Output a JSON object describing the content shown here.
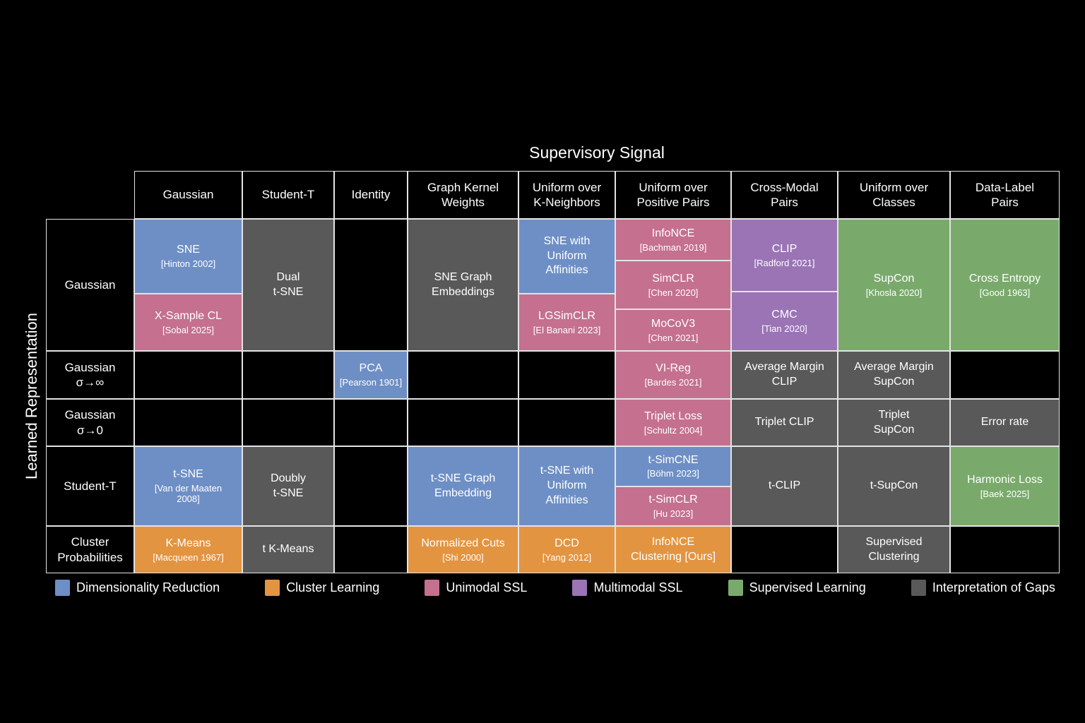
{
  "title": "Supervisory Signal",
  "y_axis_label": "Learned Representation",
  "columns": [
    {
      "key": "gaussian",
      "label": "Gaussian"
    },
    {
      "key": "student-t",
      "label": "Student-T"
    },
    {
      "key": "identity",
      "label": "Identity"
    },
    {
      "key": "graph-kernel-weights",
      "label": "Graph Kernel\nWeights"
    },
    {
      "key": "uniform-k-neighbors",
      "label": "Uniform over\nK-Neighbors"
    },
    {
      "key": "uniform-positive-pairs",
      "label": "Uniform over\nPositive Pairs"
    },
    {
      "key": "cross-modal-pairs",
      "label": "Cross-Modal\nPairs"
    },
    {
      "key": "uniform-classes",
      "label": "Uniform over\nClasses"
    },
    {
      "key": "data-label-pairs",
      "label": "Data-Label\nPairs"
    }
  ],
  "rows": [
    {
      "key": "gaussian",
      "label": "Gaussian",
      "cells": [
        {
          "blocks": [
            {
              "label": "SNE",
              "ref": "[Hinton 2002]",
              "category": "dimensionality_reduction",
              "flex": 4
            },
            {
              "label": "X-Sample CL",
              "ref": "[Sobal 2025]",
              "category": "unimodal_ssl",
              "flex": 3
            }
          ]
        },
        {
          "blocks": [
            {
              "label": "Dual\nt-SNE",
              "category": "gap_interpretation"
            }
          ]
        },
        {
          "blocks": []
        },
        {
          "blocks": [
            {
              "label": "SNE Graph\nEmbeddings",
              "category": "gap_interpretation"
            }
          ]
        },
        {
          "blocks": [
            {
              "label": "SNE with\nUniform\nAffinities",
              "category": "dimensionality_reduction",
              "flex": 4
            },
            {
              "label": "LGSimCLR",
              "ref": "[El Banani 2023]",
              "category": "unimodal_ssl",
              "flex": 3
            }
          ]
        },
        {
          "blocks": [
            {
              "label": "InfoNCE",
              "ref": "[Bachman 2019]",
              "category": "unimodal_ssl",
              "flex": 5
            },
            {
              "label": "SimCLR",
              "ref": "[Chen 2020]",
              "category": "unimodal_ssl",
              "flex": 6
            },
            {
              "label": "MoCoV3",
              "ref": "[Chen 2021]",
              "category": "unimodal_ssl",
              "flex": 5
            }
          ]
        },
        {
          "blocks": [
            {
              "label": "CLIP",
              "ref": "[Radford 2021]",
              "category": "multimodal_ssl",
              "flex": 5
            },
            {
              "label": "CMC",
              "ref": "[Tian 2020]",
              "category": "multimodal_ssl",
              "flex": 4
            }
          ]
        },
        {
          "blocks": [
            {
              "label": "SupCon",
              "ref": "[Khosla 2020]",
              "category": "supervised"
            }
          ]
        },
        {
          "blocks": [
            {
              "label": "Cross Entropy",
              "ref": "[Good 1963]",
              "category": "supervised"
            }
          ]
        }
      ]
    },
    {
      "key": "gaussian-sigma-inf",
      "label": "Gaussian\nσ→∞",
      "cells": [
        {
          "blocks": []
        },
        {
          "blocks": []
        },
        {
          "blocks": [
            {
              "label": "PCA",
              "ref": "[Pearson 1901]",
              "category": "dimensionality_reduction"
            }
          ]
        },
        {
          "blocks": []
        },
        {
          "blocks": []
        },
        {
          "blocks": [
            {
              "label": "VI-Reg",
              "ref": "[Bardes 2021]",
              "category": "unimodal_ssl"
            }
          ]
        },
        {
          "blocks": [
            {
              "label": "Average Margin\nCLIP",
              "category": "gap_interpretation"
            }
          ]
        },
        {
          "blocks": [
            {
              "label": "Average Margin\nSupCon",
              "category": "gap_interpretation"
            }
          ]
        },
        {
          "blocks": []
        }
      ]
    },
    {
      "key": "gaussian-sigma-0",
      "label": "Gaussian\nσ→0",
      "cells": [
        {
          "blocks": []
        },
        {
          "blocks": []
        },
        {
          "blocks": []
        },
        {
          "blocks": []
        },
        {
          "blocks": []
        },
        {
          "blocks": [
            {
              "label": "Triplet Loss",
              "ref": "[Schultz 2004]",
              "category": "unimodal_ssl"
            }
          ]
        },
        {
          "blocks": [
            {
              "label": "Triplet CLIP",
              "category": "gap_interpretation"
            }
          ]
        },
        {
          "blocks": [
            {
              "label": "Triplet\nSupCon",
              "category": "gap_interpretation"
            }
          ]
        },
        {
          "blocks": [
            {
              "label": "Error rate",
              "category": "gap_interpretation"
            }
          ]
        }
      ]
    },
    {
      "key": "student-t",
      "label": "Student-T",
      "cells": [
        {
          "blocks": [
            {
              "label": "t-SNE",
              "ref": "[Van der Maaten\n2008]",
              "category": "dimensionality_reduction"
            }
          ]
        },
        {
          "blocks": [
            {
              "label": "Doubly\nt-SNE",
              "category": "gap_interpretation"
            }
          ]
        },
        {
          "blocks": []
        },
        {
          "blocks": [
            {
              "label": "t-SNE Graph\nEmbedding",
              "category": "dimensionality_reduction"
            }
          ]
        },
        {
          "blocks": [
            {
              "label": "t-SNE with\nUniform\nAffinities",
              "category": "dimensionality_reduction"
            }
          ]
        },
        {
          "blocks": [
            {
              "label": "t-SimCNE",
              "ref": "[Böhm 2023]",
              "category": "dimensionality_reduction"
            },
            {
              "label": "t-SimCLR",
              "ref": "[Hu 2023]",
              "category": "unimodal_ssl"
            }
          ]
        },
        {
          "blocks": [
            {
              "label": "t-CLIP",
              "category": "gap_interpretation"
            }
          ]
        },
        {
          "blocks": [
            {
              "label": "t-SupCon",
              "category": "gap_interpretation"
            }
          ]
        },
        {
          "blocks": [
            {
              "label": "Harmonic Loss",
              "ref": "[Baek 2025]",
              "category": "supervised"
            }
          ]
        }
      ]
    },
    {
      "key": "cluster-probabilities",
      "label": "Cluster\nProbabilities",
      "cells": [
        {
          "blocks": [
            {
              "label": "K-Means",
              "ref": "[Macqueen 1967]",
              "category": "cluster_learning"
            }
          ]
        },
        {
          "blocks": [
            {
              "label": "t K-Means",
              "category": "gap_interpretation"
            }
          ]
        },
        {
          "blocks": []
        },
        {
          "blocks": [
            {
              "label": "Normalized Cuts",
              "ref": "[Shi 2000]",
              "category": "cluster_learning"
            }
          ]
        },
        {
          "blocks": [
            {
              "label": "DCD",
              "ref": "[Yang 2012]",
              "category": "cluster_learning"
            }
          ]
        },
        {
          "blocks": [
            {
              "label": "InfoNCE\nClustering [Ours]",
              "category": "cluster_learning"
            }
          ]
        },
        {
          "blocks": []
        },
        {
          "blocks": [
            {
              "label": "Supervised\nClustering",
              "category": "gap_interpretation"
            }
          ]
        },
        {
          "blocks": []
        }
      ]
    }
  ],
  "categories": {
    "dimensionality_reduction": {
      "label": "Dimensionality Reduction",
      "color": "#6e8fc5"
    },
    "cluster_learning": {
      "label": "Cluster Learning",
      "color": "#e39440"
    },
    "unimodal_ssl": {
      "label": "Unimodal SSL",
      "color": "#c4708e"
    },
    "multimodal_ssl": {
      "label": "Multimodal SSL",
      "color": "#9a74b5"
    },
    "supervised": {
      "label": "Supervised Learning",
      "color": "#79aa6b"
    },
    "gap_interpretation": {
      "label": "Interpretation of Gaps",
      "color": "#595959"
    }
  },
  "legend_order": [
    "dimensionality_reduction",
    "cluster_learning",
    "unimodal_ssl",
    "multimodal_ssl",
    "supervised",
    "gap_interpretation"
  ]
}
